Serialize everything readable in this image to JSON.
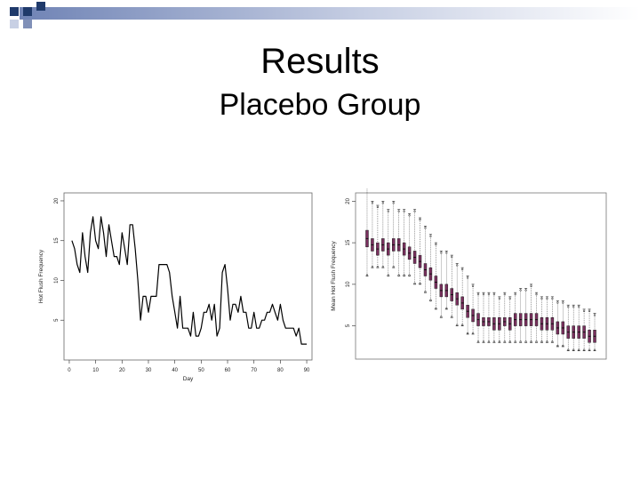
{
  "slide": {
    "title": "Results",
    "subtitle": "Placebo Group",
    "accent_colors": [
      "#1f3a6b",
      "#8090b8",
      "#c8d0e4"
    ]
  },
  "chart_data": [
    {
      "type": "line",
      "xlabel": "Day",
      "ylabel": "Hot Flush Frequency",
      "xlim": [
        -2,
        92
      ],
      "ylim": [
        0,
        21
      ],
      "x_ticks": [
        0,
        10,
        20,
        30,
        40,
        50,
        60,
        70,
        80,
        90
      ],
      "y_ticks": [
        5,
        10,
        15,
        20
      ],
      "line_color": "#000000",
      "x": [
        1,
        2,
        3,
        4,
        5,
        6,
        7,
        8,
        9,
        10,
        11,
        12,
        13,
        14,
        15,
        16,
        17,
        18,
        19,
        20,
        21,
        22,
        23,
        24,
        25,
        26,
        27,
        28,
        29,
        30,
        31,
        32,
        33,
        34,
        35,
        36,
        37,
        38,
        39,
        40,
        41,
        42,
        43,
        44,
        45,
        46,
        47,
        48,
        49,
        50,
        51,
        52,
        53,
        54,
        55,
        56,
        57,
        58,
        59,
        60,
        61,
        62,
        63,
        64,
        65,
        66,
        67,
        68,
        69,
        70,
        71,
        72,
        73,
        74,
        75,
        76,
        77,
        78,
        79,
        80,
        81,
        82,
        83,
        84,
        85,
        86,
        87,
        88,
        89,
        90
      ],
      "values": [
        15,
        14,
        12,
        11,
        16,
        13,
        11,
        16,
        18,
        15,
        14,
        18,
        16,
        13,
        17,
        15,
        13,
        13,
        12,
        16,
        14,
        12,
        17,
        17,
        14,
        10,
        5,
        8,
        8,
        6,
        8,
        8,
        8,
        12,
        12,
        12,
        12,
        11,
        8,
        6,
        4,
        8,
        4,
        4,
        4,
        3,
        6,
        3,
        3,
        4,
        6,
        6,
        7,
        5,
        7,
        3,
        4,
        11,
        12,
        9,
        5,
        7,
        7,
        6,
        8,
        6,
        6,
        4,
        4,
        6,
        4,
        4,
        5,
        5,
        6,
        6,
        7,
        6,
        5,
        7,
        5,
        4,
        4,
        4,
        4,
        3,
        4,
        2,
        2,
        2
      ]
    },
    {
      "type": "boxplot",
      "xlabel": "",
      "ylabel": "Mean Hot Flush Frequency",
      "ylim": [
        1,
        21
      ],
      "y_ticks": [
        5,
        10,
        15,
        20
      ],
      "box_color": "#7a2f5e",
      "series": [
        {
          "values": [
            [
              11,
              14.5,
              16.5,
              22
            ],
            [
              12,
              14,
              15.5,
              20
            ],
            [
              12,
              13.5,
              15,
              19.5
            ],
            [
              12,
              14,
              15.5,
              20
            ],
            [
              11,
              13.5,
              15,
              19
            ],
            [
              12,
              14,
              15.5,
              20
            ],
            [
              11,
              14,
              15.5,
              19
            ],
            [
              11,
              13.5,
              15,
              19
            ],
            [
              11,
              13,
              14.5,
              18.5
            ],
            [
              10,
              12.5,
              14,
              19
            ],
            [
              10,
              12,
              13.5,
              18
            ],
            [
              9,
              11,
              12.5,
              17
            ],
            [
              8,
              10.5,
              12,
              16
            ],
            [
              7,
              9.5,
              11,
              15
            ],
            [
              6,
              8.5,
              10,
              14
            ],
            [
              7,
              8.5,
              10,
              14
            ],
            [
              6,
              8,
              9.5,
              13.5
            ],
            [
              5,
              7.5,
              9,
              12.5
            ],
            [
              5,
              7,
              8.5,
              12
            ],
            [
              4,
              6,
              7.5,
              11
            ],
            [
              4,
              5.5,
              7,
              10
            ],
            [
              3,
              5,
              6.5,
              9
            ],
            [
              3,
              5,
              6,
              9
            ],
            [
              3,
              5,
              6,
              9
            ],
            [
              3,
              4.5,
              6,
              9
            ],
            [
              3,
              4.5,
              6,
              8.5
            ],
            [
              3,
              5,
              6,
              9
            ],
            [
              3,
              4.5,
              6,
              8.5
            ],
            [
              3,
              5,
              6.5,
              9
            ],
            [
              3,
              5,
              6.5,
              9.5
            ],
            [
              3,
              5,
              6.5,
              9.5
            ],
            [
              3,
              5,
              6.5,
              10
            ],
            [
              3,
              5,
              6.5,
              9
            ],
            [
              3,
              4.5,
              6,
              8.5
            ],
            [
              3,
              4.5,
              6,
              8.5
            ],
            [
              3,
              4.5,
              6,
              8.5
            ],
            [
              2.5,
              4,
              5.5,
              8
            ],
            [
              2.5,
              4,
              5.5,
              8
            ],
            [
              2,
              3.5,
              5,
              7.5
            ],
            [
              2,
              3.5,
              5,
              7.5
            ],
            [
              2,
              3.5,
              5,
              7.5
            ],
            [
              2,
              3.5,
              5,
              7
            ],
            [
              2,
              3,
              4.5,
              7
            ],
            [
              2,
              3,
              4.5,
              6.5
            ]
          ]
        }
      ]
    }
  ]
}
